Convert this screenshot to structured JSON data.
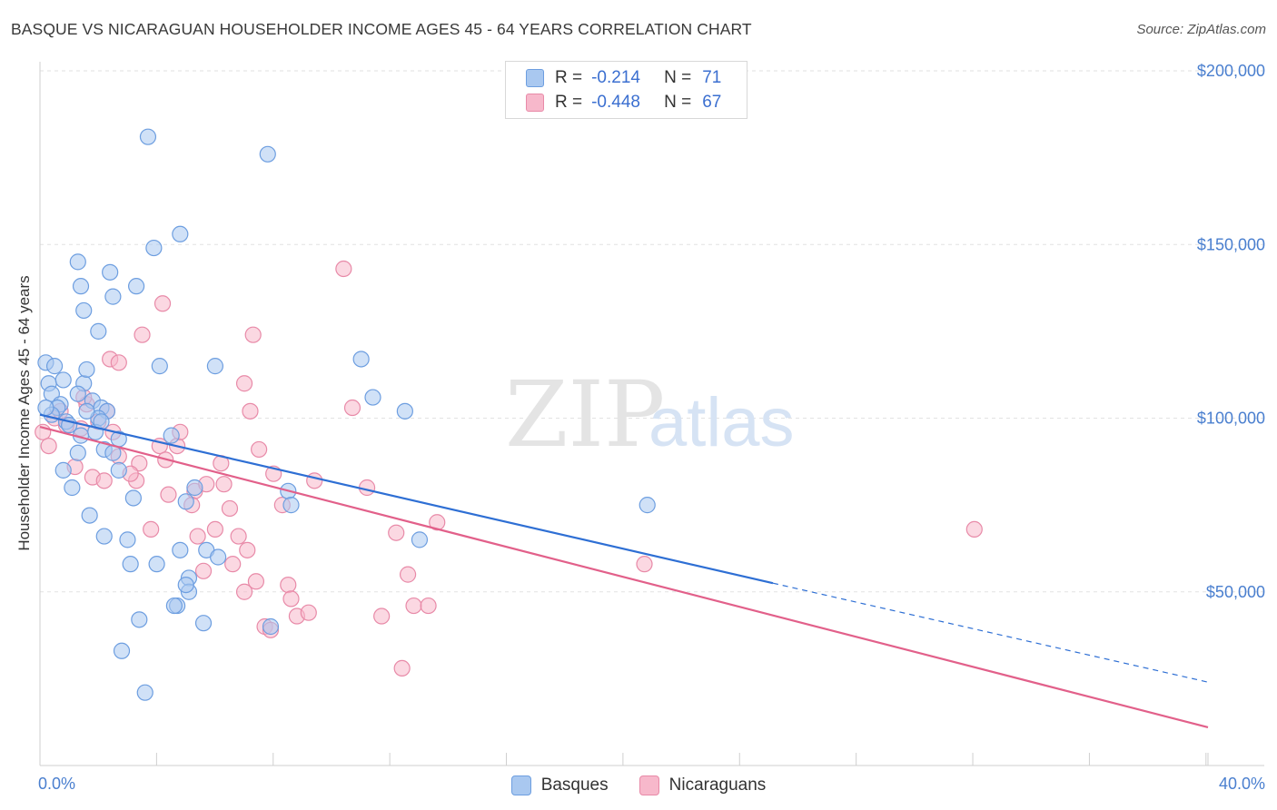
{
  "header": {
    "title": "BASQUE VS NICARAGUAN HOUSEHOLDER INCOME AGES 45 - 64 YEARS CORRELATION CHART",
    "source": "Source: ZipAtlas.com"
  },
  "watermark": {
    "zip": "ZIP",
    "atlas": "atlas"
  },
  "legend": {
    "rows": [
      {
        "r_label": "R =",
        "r_value": "-0.214",
        "n_label": "N =",
        "n_value": "71",
        "color": "#a9c8f0",
        "border": "#6d9ee0"
      },
      {
        "r_label": "R =",
        "r_value": "-0.448",
        "n_label": "N =",
        "n_value": "67",
        "color": "#f7b8cb",
        "border": "#e88aa8"
      }
    ]
  },
  "chart_data": {
    "type": "scatter",
    "title": "BASQUE VS NICARAGUAN HOUSEHOLDER INCOME AGES 45 - 64 YEARS CORRELATION CHART",
    "xlabel": "",
    "ylabel": "Householder Income Ages 45 - 64 years",
    "xlim": [
      0,
      40
    ],
    "ylim": [
      0,
      210000
    ],
    "x_tick_labels": [
      "0.0%",
      "40.0%"
    ],
    "x_tick_values": [
      0,
      40
    ],
    "y_ticks": [
      {
        "value": 50000,
        "label": "$50,000"
      },
      {
        "value": 100000,
        "label": "$100,000"
      },
      {
        "value": 150000,
        "label": "$150,000"
      },
      {
        "value": 200000,
        "label": "$200,000"
      }
    ],
    "grid": "horizontal dashed",
    "legend_position": "top-center",
    "series": [
      {
        "name": "Basques",
        "color": "#a9c8f0",
        "stroke": "#6d9ee0",
        "trend": {
          "x0": 0,
          "y0": 101000,
          "x1": 25.1,
          "y1": 52500,
          "dash_x1": 40,
          "dash_y1": 24000,
          "color": "#2e6fd4"
        },
        "points": [
          [
            0.2,
            116000
          ],
          [
            0.5,
            115000
          ],
          [
            0.3,
            110000
          ],
          [
            0.4,
            107000
          ],
          [
            0.8,
            111000
          ],
          [
            1.5,
            110000
          ],
          [
            1.6,
            114000
          ],
          [
            1.3,
            107000
          ],
          [
            0.7,
            104000
          ],
          [
            0.6,
            103000
          ],
          [
            0.9,
            99000
          ],
          [
            1.0,
            98000
          ],
          [
            1.8,
            105000
          ],
          [
            2.1,
            103000
          ],
          [
            2.3,
            102000
          ],
          [
            2.0,
            100000
          ],
          [
            1.9,
            96000
          ],
          [
            1.3,
            90000
          ],
          [
            2.2,
            91000
          ],
          [
            2.5,
            90000
          ],
          [
            2.7,
            94000
          ],
          [
            0.8,
            85000
          ],
          [
            1.1,
            80000
          ],
          [
            1.7,
            72000
          ],
          [
            2.7,
            85000
          ],
          [
            3.2,
            77000
          ],
          [
            2.2,
            66000
          ],
          [
            3.0,
            65000
          ],
          [
            3.1,
            58000
          ],
          [
            4.0,
            58000
          ],
          [
            4.8,
            62000
          ],
          [
            5.1,
            54000
          ],
          [
            5.1,
            50000
          ],
          [
            5.7,
            62000
          ],
          [
            6.1,
            60000
          ],
          [
            5.0,
            52000
          ],
          [
            4.7,
            46000
          ],
          [
            4.6,
            46000
          ],
          [
            5.6,
            41000
          ],
          [
            3.4,
            42000
          ],
          [
            2.8,
            33000
          ],
          [
            3.6,
            21000
          ],
          [
            5.3,
            80000
          ],
          [
            5.0,
            76000
          ],
          [
            4.5,
            95000
          ],
          [
            4.1,
            115000
          ],
          [
            6.0,
            115000
          ],
          [
            3.3,
            138000
          ],
          [
            2.4,
            142000
          ],
          [
            1.3,
            145000
          ],
          [
            1.4,
            138000
          ],
          [
            1.5,
            131000
          ],
          [
            2.5,
            135000
          ],
          [
            2.0,
            125000
          ],
          [
            3.9,
            149000
          ],
          [
            4.8,
            153000
          ],
          [
            3.7,
            181000
          ],
          [
            7.8,
            176000
          ],
          [
            8.5,
            79000
          ],
          [
            8.6,
            75000
          ],
          [
            11.0,
            117000
          ],
          [
            11.4,
            106000
          ],
          [
            12.5,
            102000
          ],
          [
            13.0,
            65000
          ],
          [
            20.8,
            75000
          ],
          [
            7.9,
            40000
          ],
          [
            0.4,
            101000
          ],
          [
            0.2,
            103000
          ],
          [
            1.4,
            95000
          ],
          [
            2.1,
            99000
          ],
          [
            1.6,
            102000
          ]
        ]
      },
      {
        "name": "Nicaraguans",
        "color": "#f7b8cb",
        "stroke": "#e88aa8",
        "trend": {
          "x0": 0,
          "y0": 97500,
          "x1": 40,
          "y1": 11000,
          "color": "#e2608a"
        },
        "points": [
          [
            0.1,
            96000
          ],
          [
            0.5,
            100000
          ],
          [
            0.7,
            102000
          ],
          [
            0.9,
            98000
          ],
          [
            1.4,
            97000
          ],
          [
            1.6,
            104000
          ],
          [
            1.8,
            83000
          ],
          [
            2.0,
            99000
          ],
          [
            2.3,
            102000
          ],
          [
            2.5,
            96000
          ],
          [
            2.7,
            89000
          ],
          [
            2.2,
            82000
          ],
          [
            1.2,
            86000
          ],
          [
            2.4,
            117000
          ],
          [
            2.7,
            116000
          ],
          [
            3.3,
            82000
          ],
          [
            3.4,
            87000
          ],
          [
            3.5,
            124000
          ],
          [
            3.8,
            68000
          ],
          [
            4.1,
            92000
          ],
          [
            4.3,
            88000
          ],
          [
            4.4,
            78000
          ],
          [
            4.7,
            92000
          ],
          [
            4.8,
            96000
          ],
          [
            5.3,
            79000
          ],
          [
            5.2,
            75000
          ],
          [
            5.4,
            66000
          ],
          [
            5.6,
            56000
          ],
          [
            5.7,
            81000
          ],
          [
            6.0,
            68000
          ],
          [
            6.2,
            87000
          ],
          [
            6.3,
            81000
          ],
          [
            6.5,
            74000
          ],
          [
            6.6,
            58000
          ],
          [
            6.8,
            66000
          ],
          [
            7.0,
            50000
          ],
          [
            7.1,
            62000
          ],
          [
            7.4,
            53000
          ],
          [
            7.7,
            40000
          ],
          [
            7.5,
            91000
          ],
          [
            7.2,
            102000
          ],
          [
            7.0,
            110000
          ],
          [
            7.3,
            124000
          ],
          [
            8.0,
            84000
          ],
          [
            8.3,
            75000
          ],
          [
            8.5,
            52000
          ],
          [
            8.6,
            48000
          ],
          [
            8.8,
            43000
          ],
          [
            9.2,
            44000
          ],
          [
            9.4,
            82000
          ],
          [
            10.4,
            143000
          ],
          [
            10.7,
            103000
          ],
          [
            11.2,
            80000
          ],
          [
            11.7,
            43000
          ],
          [
            12.2,
            67000
          ],
          [
            12.4,
            28000
          ],
          [
            12.6,
            55000
          ],
          [
            12.8,
            46000
          ],
          [
            13.3,
            46000
          ],
          [
            13.6,
            70000
          ],
          [
            20.7,
            58000
          ],
          [
            32.0,
            68000
          ],
          [
            4.2,
            133000
          ],
          [
            1.5,
            106000
          ],
          [
            0.3,
            92000
          ],
          [
            3.1,
            84000
          ],
          [
            7.9,
            39000
          ]
        ]
      }
    ]
  }
}
